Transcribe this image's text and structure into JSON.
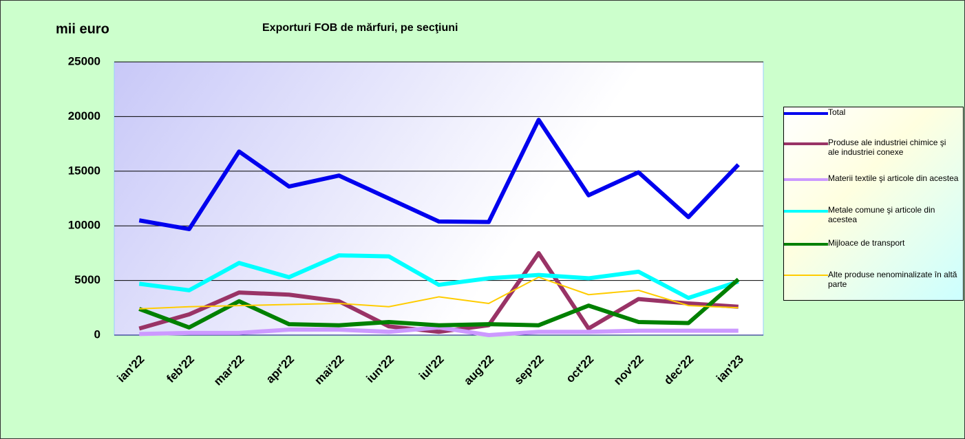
{
  "chart_data": {
    "type": "line",
    "title": "Exporturi FOB de mărfuri, pe secţiuni",
    "y_label": "mii euro",
    "categories": [
      "ian'22",
      "feb'22",
      "mar'22",
      "apr'22",
      "mai'22",
      "iun'22",
      "iul'22",
      "aug'22",
      "sep'22",
      "oct'22",
      "nov'22",
      "dec'22",
      "ian'23"
    ],
    "series": [
      {
        "name": "Total",
        "color": "#0000ee",
        "values": [
          10500,
          9700,
          16800,
          13600,
          14600,
          12500,
          10400,
          10350,
          19700,
          12800,
          14900,
          10800,
          15600
        ]
      },
      {
        "name": "Produse ale industriei chimice şi ale industriei conexe",
        "color": "#993366",
        "values": [
          600,
          1900,
          3900,
          3700,
          3100,
          800,
          300,
          900,
          7500,
          600,
          3300,
          2900,
          2600
        ]
      },
      {
        "name": "Materii textile şi articole din acestea",
        "color": "#cc99ff",
        "values": [
          100,
          200,
          200,
          500,
          500,
          300,
          700,
          0,
          300,
          300,
          400,
          400,
          400
        ]
      },
      {
        "name": "Metale comune şi articole din acestea",
        "color": "#00ffff",
        "values": [
          4700,
          4100,
          6600,
          5300,
          7300,
          7200,
          4600,
          5200,
          5500,
          5200,
          5800,
          3400,
          4900
        ]
      },
      {
        "name": "Mijloace de transport",
        "color": "#008000",
        "values": [
          2400,
          700,
          3100,
          1000,
          900,
          1200,
          900,
          1000,
          900,
          2700,
          1200,
          1100,
          5100
        ]
      },
      {
        "name": "Alte produse nenominalizate în altă parte",
        "color": "#ffcc00",
        "values": [
          2400,
          2600,
          2700,
          2800,
          2900,
          2600,
          3500,
          2900,
          5300,
          3700,
          4100,
          2700,
          2500
        ]
      }
    ],
    "ylim": [
      0,
      25000
    ],
    "yticks": [
      0,
      5000,
      10000,
      15000,
      20000,
      25000
    ],
    "grid": true
  }
}
